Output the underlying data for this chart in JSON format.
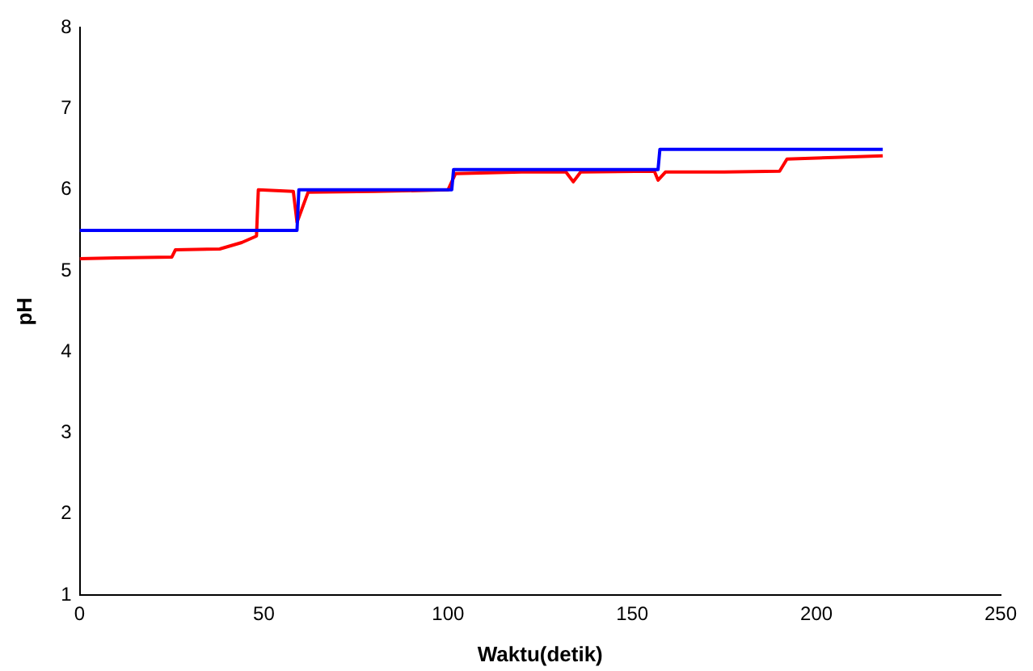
{
  "chart_data": {
    "type": "line",
    "xlabel": "Waktu(detik)",
    "ylabel": "pH",
    "xlim": [
      0,
      250
    ],
    "ylim": [
      1,
      8
    ],
    "xticks": [
      0,
      50,
      100,
      150,
      200,
      250
    ],
    "yticks": [
      1,
      2,
      3,
      4,
      5,
      6,
      7,
      8
    ],
    "grid": false,
    "legend": false,
    "marker": "none",
    "line_style": "solid",
    "series": [
      {
        "color": "#0000ff",
        "x": [
          0,
          59,
          59.5,
          101,
          101.5,
          157,
          157.5,
          218
        ],
        "values": [
          5.5,
          5.5,
          6.0,
          6.0,
          6.25,
          6.25,
          6.5,
          6.5
        ]
      },
      {
        "color": "#ff0000",
        "x": [
          0,
          10,
          25,
          26,
          38,
          44,
          48,
          48.5,
          58,
          59,
          62,
          80,
          100,
          102,
          120,
          132,
          134,
          136,
          156,
          157,
          159,
          175,
          190,
          192,
          205,
          218
        ],
        "values": [
          5.15,
          5.16,
          5.17,
          5.26,
          5.27,
          5.35,
          5.43,
          6.0,
          5.98,
          5.6,
          5.97,
          5.98,
          6.0,
          6.2,
          6.22,
          6.22,
          6.1,
          6.22,
          6.23,
          6.12,
          6.22,
          6.22,
          6.23,
          6.38,
          6.4,
          6.42
        ]
      }
    ]
  }
}
